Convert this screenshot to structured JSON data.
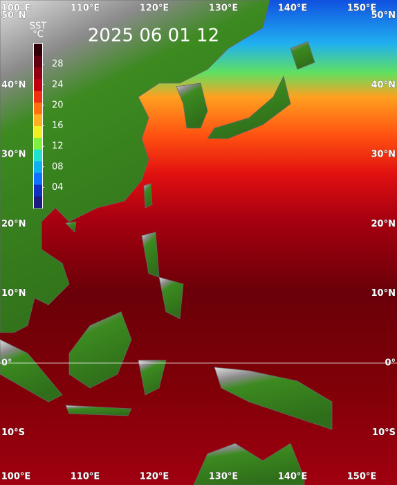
{
  "map": {
    "title": "2025 06 01 12",
    "colorbar": {
      "label": [
        "SST",
        "°C"
      ],
      "range": [
        0,
        32
      ],
      "ticks": [
        {
          "value": 4,
          "label": "04"
        },
        {
          "value": 8,
          "label": "08"
        },
        12,
        16,
        20,
        24,
        28
      ],
      "colors": [
        "#1a1a80",
        "#1030c0",
        "#1070ff",
        "#10b0f0",
        "#20e0d0",
        "#80f040",
        "#f0f020",
        "#ffb020",
        "#ff7010",
        "#f03010",
        "#c00010",
        "#900010",
        "#600010",
        "#300008"
      ]
    },
    "longitudes": [
      {
        "value": 100,
        "label": "100°E"
      },
      {
        "value": 110,
        "label": "110°E"
      },
      {
        "value": 120,
        "label": "120°E"
      },
      {
        "value": 130,
        "label": "130°E"
      },
      {
        "value": 140,
        "label": "140°E"
      },
      {
        "value": 150,
        "label": "150°E"
      }
    ],
    "latitudes": [
      {
        "value": 50,
        "label": "50°N"
      },
      {
        "value": 40,
        "label": "40°N"
      },
      {
        "value": 30,
        "label": "30°N"
      },
      {
        "value": 20,
        "label": "20°N"
      },
      {
        "value": 10,
        "label": "10°N"
      },
      {
        "value": 0,
        "label": "0°"
      },
      {
        "value": -10,
        "label": "10°S"
      }
    ]
  }
}
